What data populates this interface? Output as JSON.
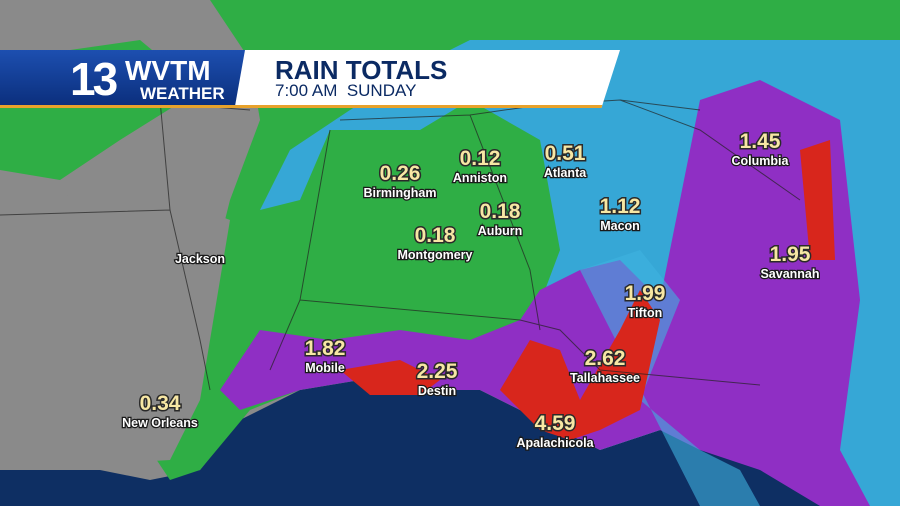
{
  "header": {
    "logo_number": "13",
    "logo_call": "WVTM",
    "logo_sub": "WEATHER",
    "title": "RAIN TOTALS",
    "subtitle": "7:00 AM  SUNDAY"
  },
  "cities": [
    {
      "label": "Birmingham",
      "value": "0.26"
    },
    {
      "label": "Anniston",
      "value": "0.12"
    },
    {
      "label": "Atlanta",
      "value": "0.51"
    },
    {
      "label": "Auburn",
      "value": "0.18"
    },
    {
      "label": "Montgomery",
      "value": "0.18"
    },
    {
      "label": "Macon",
      "value": "1.12"
    },
    {
      "label": "Columbia",
      "value": "1.45"
    },
    {
      "label": "Savannah",
      "value": "1.95"
    },
    {
      "label": "Tifton",
      "value": "1.99"
    },
    {
      "label": "Mobile",
      "value": "1.82"
    },
    {
      "label": "Destin",
      "value": "2.25"
    },
    {
      "label": "Tallahassee",
      "value": "2.62"
    },
    {
      "label": "Apalachicola",
      "value": "4.59"
    },
    {
      "label": "New Orleans",
      "value": "0.34"
    },
    {
      "label": "Jackson"
    }
  ]
}
